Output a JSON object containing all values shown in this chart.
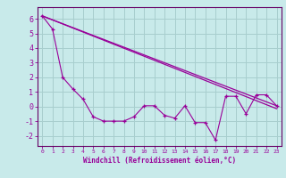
{
  "xlabel": "Windchill (Refroidissement éolien,°C)",
  "background_color": "#c8eaea",
  "grid_color": "#a8cece",
  "line_color": "#990099",
  "spine_color": "#660066",
  "xlim": [
    -0.5,
    23.5
  ],
  "ylim": [
    -2.7,
    6.8
  ],
  "yticks": [
    -2,
    -1,
    0,
    1,
    2,
    3,
    4,
    5,
    6
  ],
  "xticks": [
    0,
    1,
    2,
    3,
    4,
    5,
    6,
    7,
    8,
    9,
    10,
    11,
    12,
    13,
    14,
    15,
    16,
    17,
    18,
    19,
    20,
    21,
    22,
    23
  ],
  "line1_x": [
    0,
    23
  ],
  "line1_y": [
    6.2,
    0.05
  ],
  "line2_x": [
    0,
    23
  ],
  "line2_y": [
    6.2,
    -0.15
  ],
  "zigzag_x": [
    0,
    1,
    2,
    3,
    4,
    5,
    6,
    7,
    8,
    9,
    10,
    11,
    12,
    13,
    14,
    15,
    16,
    17,
    18,
    19,
    20,
    21,
    22,
    23
  ],
  "zigzag_y": [
    6.2,
    5.3,
    2.0,
    1.2,
    0.5,
    -0.7,
    -1.0,
    -1.0,
    -1.0,
    -0.7,
    0.05,
    0.05,
    -0.6,
    -0.8,
    0.05,
    -1.1,
    -1.1,
    -2.3,
    0.7,
    0.7,
    -0.5,
    0.8,
    0.8,
    0.05
  ],
  "xlabel_fontsize": 5.5,
  "tick_fontsize_x": 4.5,
  "tick_fontsize_y": 6.0
}
